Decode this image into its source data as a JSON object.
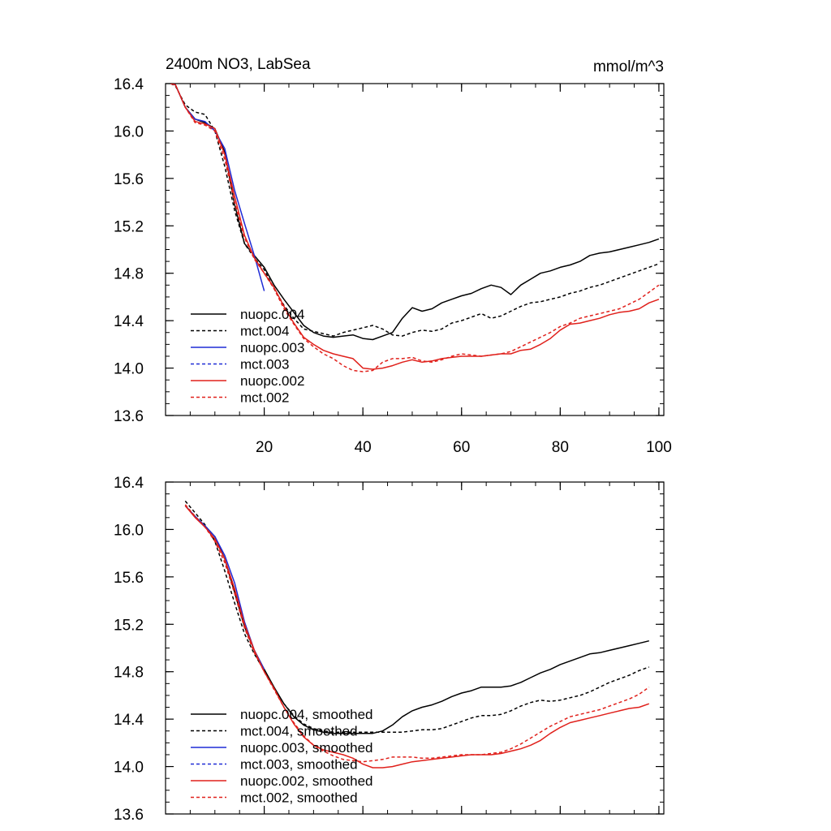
{
  "figure": {
    "title_left": "2400m NO3, LabSea",
    "title_right": "mmol/m^3"
  },
  "chart_data": [
    {
      "type": "line",
      "title": "",
      "xlabel": "",
      "ylabel": "",
      "xlim": [
        0,
        101
      ],
      "ylim": [
        13.6,
        16.4
      ],
      "xticks": [
        20,
        40,
        60,
        80,
        100
      ],
      "xticklabels": [
        "20",
        "40",
        "60",
        "80",
        "100"
      ],
      "yticks": [
        13.6,
        14.0,
        14.4,
        14.8,
        15.2,
        15.6,
        16.0,
        16.4
      ],
      "yticklabels": [
        "13.6",
        "14.0",
        "14.4",
        "14.8",
        "15.2",
        "15.6",
        "16.0",
        "16.4"
      ],
      "legend_position": "bottom-left",
      "series": [
        {
          "name": "nuopc.004",
          "color": "#000000",
          "dash": "solid",
          "x": [
            1,
            2,
            4,
            6,
            8,
            10,
            12,
            14,
            16,
            18,
            20,
            22,
            24,
            26,
            28,
            30,
            32,
            34,
            36,
            38,
            40,
            42,
            44,
            46,
            48,
            50,
            52,
            54,
            56,
            58,
            60,
            62,
            64,
            66,
            68,
            70,
            72,
            74,
            76,
            78,
            80,
            82,
            84,
            86,
            88,
            90,
            92,
            94,
            96,
            98,
            100
          ],
          "y": [
            16.4,
            16.39,
            16.2,
            16.1,
            16.07,
            16.02,
            15.82,
            15.38,
            15.05,
            14.95,
            14.85,
            14.7,
            14.58,
            14.47,
            14.36,
            14.3,
            14.27,
            14.26,
            14.27,
            14.28,
            14.25,
            14.24,
            14.27,
            14.3,
            14.42,
            14.51,
            14.48,
            14.5,
            14.55,
            14.58,
            14.61,
            14.63,
            14.67,
            14.7,
            14.68,
            14.62,
            14.7,
            14.75,
            14.8,
            14.82,
            14.85,
            14.87,
            14.9,
            14.95,
            14.97,
            14.98,
            15.0,
            15.02,
            15.04,
            15.06,
            15.09
          ]
        },
        {
          "name": "mct.004",
          "color": "#000000",
          "dash": "dashed",
          "x": [
            1,
            2,
            4,
            6,
            8,
            10,
            12,
            14,
            16,
            18,
            20,
            22,
            24,
            26,
            28,
            30,
            32,
            34,
            36,
            38,
            40,
            42,
            44,
            46,
            48,
            50,
            52,
            54,
            56,
            58,
            60,
            62,
            64,
            66,
            68,
            70,
            72,
            74,
            76,
            78,
            80,
            82,
            84,
            86,
            88,
            90,
            92,
            94,
            96,
            98,
            100
          ],
          "y": [
            16.4,
            16.38,
            16.22,
            16.16,
            16.14,
            16.0,
            15.7,
            15.33,
            15.05,
            14.93,
            14.83,
            14.67,
            14.53,
            14.42,
            14.33,
            14.31,
            14.29,
            14.27,
            14.3,
            14.32,
            14.34,
            14.36,
            14.33,
            14.28,
            14.27,
            14.3,
            14.32,
            14.31,
            14.33,
            14.38,
            14.4,
            14.43,
            14.46,
            14.42,
            14.44,
            14.48,
            14.52,
            14.55,
            14.56,
            14.58,
            14.6,
            14.63,
            14.65,
            14.68,
            14.7,
            14.73,
            14.76,
            14.79,
            14.82,
            14.85,
            14.88
          ]
        },
        {
          "name": "nuopc.003",
          "color": "#1f2bd6",
          "dash": "solid",
          "x": [
            1,
            2,
            4,
            6,
            8,
            10,
            12,
            14,
            16,
            18,
            20
          ],
          "y": [
            16.4,
            16.39,
            16.2,
            16.1,
            16.08,
            16.0,
            15.85,
            15.5,
            15.22,
            14.95,
            14.65
          ]
        },
        {
          "name": "mct.003",
          "color": "#1f2bd6",
          "dash": "dashed",
          "x": [],
          "y": []
        },
        {
          "name": "nuopc.002",
          "color": "#e0201b",
          "dash": "solid",
          "x": [
            1,
            2,
            4,
            6,
            8,
            10,
            12,
            14,
            16,
            18,
            20,
            22,
            24,
            26,
            28,
            30,
            32,
            34,
            36,
            38,
            40,
            42,
            44,
            46,
            48,
            50,
            52,
            54,
            56,
            58,
            60,
            62,
            64,
            66,
            68,
            70,
            72,
            74,
            76,
            78,
            80,
            82,
            84,
            86,
            88,
            90,
            92,
            94,
            96,
            98,
            100
          ],
          "y": [
            16.4,
            16.39,
            16.2,
            16.08,
            16.06,
            16.02,
            15.8,
            15.45,
            15.12,
            14.93,
            14.8,
            14.68,
            14.52,
            14.38,
            14.26,
            14.2,
            14.15,
            14.12,
            14.1,
            14.08,
            14.0,
            13.99,
            14.0,
            14.02,
            14.05,
            14.07,
            14.05,
            14.06,
            14.08,
            14.09,
            14.1,
            14.1,
            14.1,
            14.11,
            14.12,
            14.12,
            14.15,
            14.16,
            14.2,
            14.25,
            14.32,
            14.37,
            14.38,
            14.4,
            14.42,
            14.45,
            14.47,
            14.48,
            14.5,
            14.55,
            14.58
          ]
        },
        {
          "name": "mct.002",
          "color": "#e0201b",
          "dash": "dashed",
          "x": [
            1,
            2,
            4,
            6,
            8,
            10,
            12,
            14,
            16,
            18,
            20,
            22,
            24,
            26,
            28,
            30,
            32,
            34,
            36,
            38,
            40,
            42,
            44,
            46,
            48,
            50,
            52,
            54,
            56,
            58,
            60,
            62,
            64,
            66,
            68,
            70,
            72,
            74,
            76,
            78,
            80,
            82,
            84,
            86,
            88,
            90,
            92,
            94,
            96,
            98,
            100
          ],
          "y": [
            16.4,
            16.39,
            16.2,
            16.07,
            16.05,
            16.0,
            15.76,
            15.4,
            15.1,
            14.92,
            14.8,
            14.67,
            14.5,
            14.37,
            14.25,
            14.18,
            14.12,
            14.08,
            14.02,
            13.98,
            13.97,
            13.98,
            14.05,
            14.08,
            14.08,
            14.09,
            14.06,
            14.05,
            14.07,
            14.1,
            14.12,
            14.11,
            14.1,
            14.11,
            14.12,
            14.14,
            14.18,
            14.22,
            14.26,
            14.3,
            14.35,
            14.38,
            14.42,
            14.44,
            14.46,
            14.48,
            14.5,
            14.54,
            14.58,
            14.64,
            14.7
          ]
        }
      ]
    },
    {
      "type": "line",
      "title": "",
      "xlabel": "",
      "ylabel": "",
      "xlim": [
        0,
        101
      ],
      "ylim": [
        13.6,
        16.4
      ],
      "xticks": [
        20,
        40,
        60,
        80,
        100
      ],
      "xticklabels": [],
      "yticks": [
        13.6,
        14.0,
        14.4,
        14.8,
        15.2,
        15.6,
        16.0,
        16.4
      ],
      "yticklabels": [
        "13.6",
        "14.0",
        "14.4",
        "14.8",
        "15.2",
        "15.6",
        "16.0",
        "16.4"
      ],
      "legend_position": "bottom-left",
      "series": [
        {
          "name": "nuopc.004, smoothed",
          "color": "#000000",
          "dash": "solid",
          "x": [
            4,
            6,
            8,
            10,
            12,
            14,
            16,
            18,
            20,
            22,
            24,
            26,
            28,
            30,
            32,
            34,
            36,
            38,
            40,
            42,
            44,
            46,
            48,
            50,
            52,
            54,
            56,
            58,
            60,
            62,
            64,
            66,
            68,
            70,
            72,
            74,
            76,
            78,
            80,
            82,
            84,
            86,
            88,
            90,
            92,
            94,
            96,
            98
          ],
          "y": [
            16.2,
            16.11,
            16.03,
            15.94,
            15.75,
            15.47,
            15.18,
            14.98,
            14.82,
            14.67,
            14.53,
            14.42,
            14.35,
            14.31,
            14.29,
            14.28,
            14.28,
            14.28,
            14.28,
            14.28,
            14.3,
            14.35,
            14.42,
            14.47,
            14.5,
            14.52,
            14.55,
            14.59,
            14.62,
            14.64,
            14.67,
            14.67,
            14.67,
            14.68,
            14.71,
            14.75,
            14.79,
            14.82,
            14.86,
            14.89,
            14.92,
            14.95,
            14.96,
            14.98,
            15.0,
            15.02,
            15.04,
            15.06
          ]
        },
        {
          "name": "mct.004, smoothed",
          "color": "#000000",
          "dash": "dashed",
          "x": [
            4,
            6,
            8,
            10,
            12,
            14,
            16,
            18,
            20,
            22,
            24,
            26,
            28,
            30,
            32,
            34,
            36,
            38,
            40,
            42,
            44,
            46,
            48,
            50,
            52,
            54,
            56,
            58,
            60,
            62,
            64,
            66,
            68,
            70,
            72,
            74,
            76,
            78,
            80,
            82,
            84,
            86,
            88,
            90,
            92,
            94,
            96,
            98
          ],
          "y": [
            16.24,
            16.14,
            16.04,
            15.9,
            15.65,
            15.38,
            15.12,
            14.95,
            14.81,
            14.66,
            14.53,
            14.43,
            14.36,
            14.32,
            14.3,
            14.29,
            14.29,
            14.29,
            14.29,
            14.29,
            14.29,
            14.29,
            14.29,
            14.3,
            14.31,
            14.31,
            14.32,
            14.35,
            14.38,
            14.41,
            14.43,
            14.43,
            14.44,
            14.47,
            14.51,
            14.54,
            14.56,
            14.55,
            14.56,
            14.58,
            14.6,
            14.63,
            14.67,
            14.71,
            14.74,
            14.77,
            14.81,
            14.84
          ]
        },
        {
          "name": "nuopc.003, smoothed",
          "color": "#1f2bd6",
          "dash": "solid",
          "x": [
            4,
            6,
            8,
            10,
            12,
            14,
            16,
            18,
            20
          ],
          "y": [
            16.2,
            16.11,
            16.03,
            15.94,
            15.78,
            15.55,
            15.22,
            14.98,
            14.82
          ]
        },
        {
          "name": "mct.003, smoothed",
          "color": "#1f2bd6",
          "dash": "dashed",
          "x": [],
          "y": []
        },
        {
          "name": "nuopc.002, smoothed",
          "color": "#e0201b",
          "dash": "solid",
          "x": [
            4,
            6,
            8,
            10,
            12,
            14,
            16,
            18,
            20,
            22,
            24,
            26,
            28,
            30,
            32,
            34,
            36,
            38,
            40,
            42,
            44,
            46,
            48,
            50,
            52,
            54,
            56,
            58,
            60,
            62,
            64,
            66,
            68,
            70,
            72,
            74,
            76,
            78,
            80,
            82,
            84,
            86,
            88,
            90,
            92,
            94,
            96,
            98
          ],
          "y": [
            16.2,
            16.1,
            16.02,
            15.92,
            15.75,
            15.5,
            15.2,
            14.98,
            14.8,
            14.66,
            14.5,
            14.36,
            14.25,
            14.18,
            14.14,
            14.12,
            14.1,
            14.07,
            14.02,
            13.99,
            13.99,
            14.0,
            14.02,
            14.04,
            14.05,
            14.06,
            14.07,
            14.08,
            14.09,
            14.1,
            14.1,
            14.1,
            14.11,
            14.13,
            14.15,
            14.18,
            14.22,
            14.28,
            14.33,
            14.37,
            14.39,
            14.41,
            14.43,
            14.45,
            14.47,
            14.49,
            14.5,
            14.53
          ]
        },
        {
          "name": "mct.002, smoothed",
          "color": "#e0201b",
          "dash": "dashed",
          "x": [
            4,
            6,
            8,
            10,
            12,
            14,
            16,
            18,
            20,
            22,
            24,
            26,
            28,
            30,
            32,
            34,
            36,
            38,
            40,
            42,
            44,
            46,
            48,
            50,
            52,
            54,
            56,
            58,
            60,
            62,
            64,
            66,
            68,
            70,
            72,
            74,
            76,
            78,
            80,
            82,
            84,
            86,
            88,
            90,
            92,
            94,
            96,
            98
          ],
          "y": [
            16.21,
            16.11,
            16.02,
            15.9,
            15.72,
            15.46,
            15.17,
            14.96,
            14.8,
            14.65,
            14.5,
            14.37,
            14.26,
            14.18,
            14.13,
            14.09,
            14.06,
            14.05,
            14.04,
            14.05,
            14.06,
            14.08,
            14.08,
            14.08,
            14.07,
            14.07,
            14.08,
            14.09,
            14.1,
            14.1,
            14.1,
            14.11,
            14.12,
            14.15,
            14.19,
            14.24,
            14.29,
            14.34,
            14.38,
            14.42,
            14.44,
            14.46,
            14.48,
            14.51,
            14.54,
            14.57,
            14.61,
            14.67
          ]
        }
      ]
    }
  ]
}
